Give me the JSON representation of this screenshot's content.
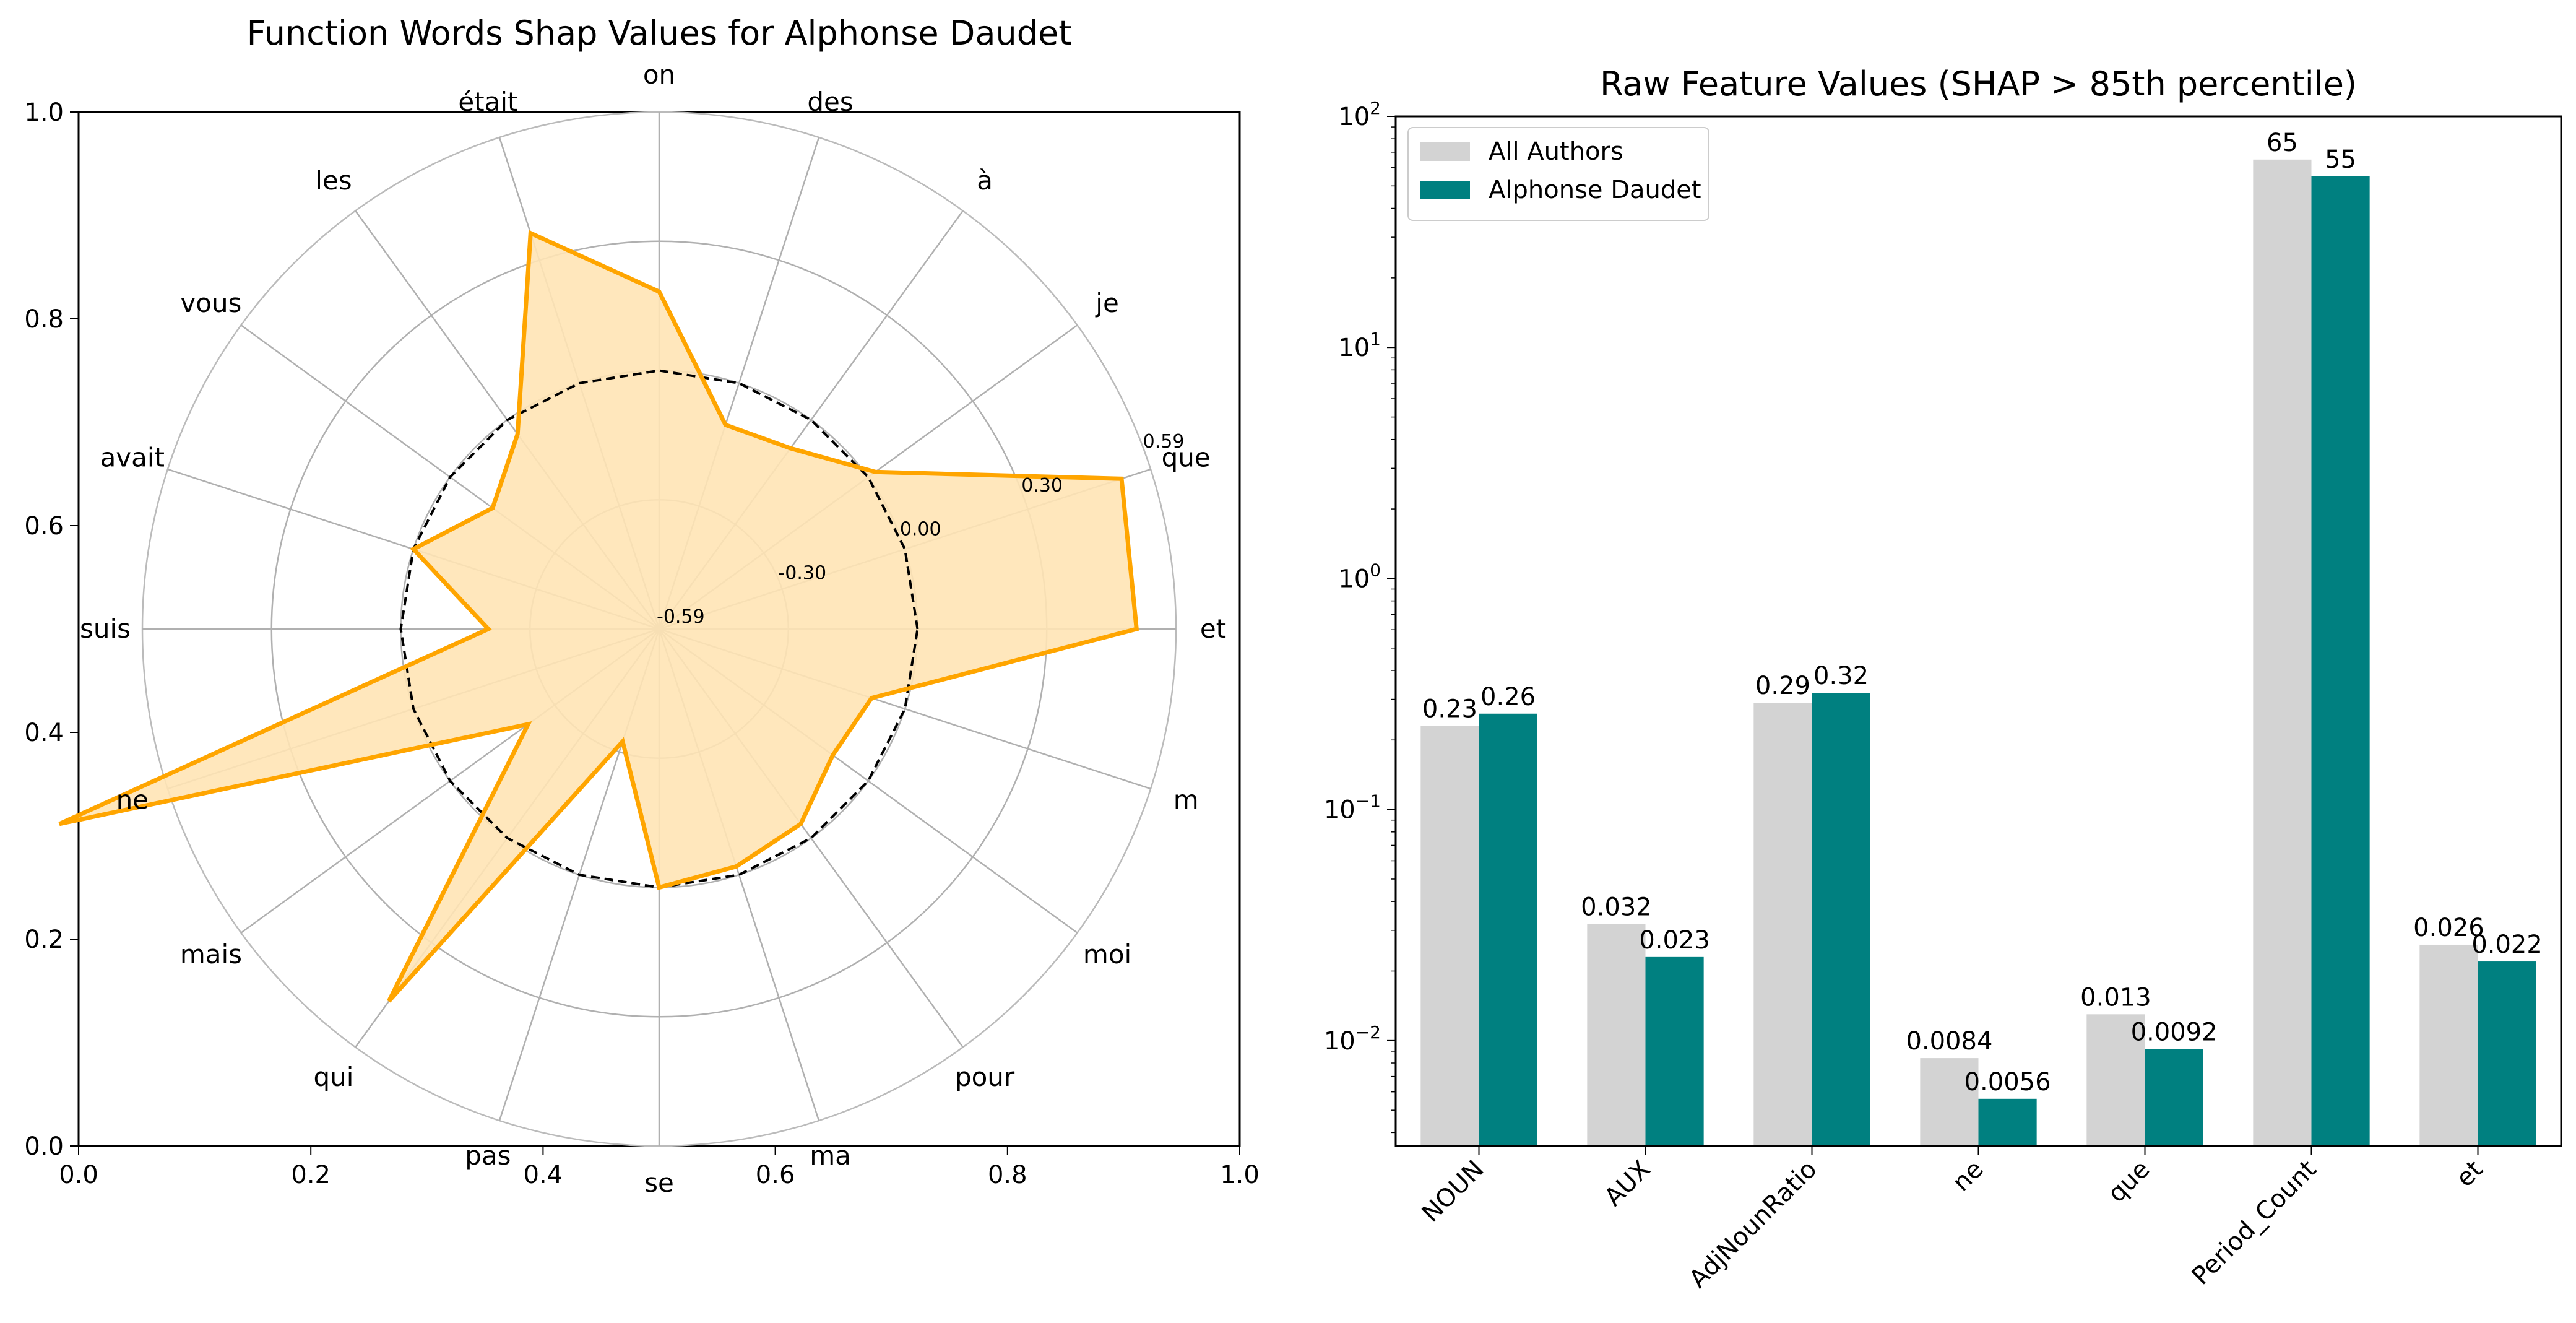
{
  "chart_data": [
    {
      "type": "radar",
      "title": "Function Words Shap Values for Alphonse Daudet",
      "categories": [
        "et",
        "que",
        "je",
        "à",
        "des",
        "on",
        "était",
        "les",
        "vous",
        "avait",
        "suis",
        "ne",
        "mais",
        "qui",
        "pas",
        "se",
        "ma",
        "pour",
        "moi",
        "m"
      ],
      "series": [
        {
          "values": [
            0.5,
            0.52,
            0.02,
            -0.08,
            -0.1,
            0.18,
            0.36,
            -0.04,
            -0.12,
            0.0,
            -0.2,
            0.85,
            -0.22,
            0.46,
            -0.32,
            0.0,
            -0.02,
            -0.04,
            -0.1,
            -0.08
          ],
          "color": "#FFA500",
          "fill": "#FFE4B5"
        },
        {
          "values": [
            0,
            0,
            0,
            0,
            0,
            0,
            0,
            0,
            0,
            0,
            0,
            0,
            0,
            0,
            0,
            0,
            0,
            0,
            0,
            0
          ],
          "color": "#000000",
          "style": "dashed"
        }
      ],
      "radial_range": [
        -0.59,
        0.59
      ],
      "radial_ticks": [
        "-0.59",
        "-0.30",
        "0.00",
        "0.30",
        "0.59"
      ],
      "cartesian_ticks": [
        "0.0",
        "0.2",
        "0.4",
        "0.6",
        "0.8",
        "1.0"
      ],
      "grid": true
    },
    {
      "type": "bar",
      "title": "Raw Feature Values (SHAP > 85th percentile)",
      "categories": [
        "NOUN",
        "AUX",
        "AdjNounRatio",
        "ne",
        "que",
        "Period_Count",
        "et"
      ],
      "series": [
        {
          "name": "All Authors",
          "values": [
            0.23,
            0.032,
            0.29,
            0.0084,
            0.013,
            65,
            0.026
          ],
          "labels": [
            "0.23",
            "0.032",
            "0.29",
            "0.0084",
            "0.013",
            "65",
            "0.026"
          ],
          "color": "#D3D3D3"
        },
        {
          "name": "Alphonse Daudet",
          "values": [
            0.26,
            0.023,
            0.32,
            0.0056,
            0.0092,
            55,
            0.022
          ],
          "labels": [
            "0.26",
            "0.023",
            "0.32",
            "0.0056",
            "0.0092",
            "55",
            "0.022"
          ],
          "color": "#008080"
        }
      ],
      "yscale": "log",
      "ylim": [
        0.0035,
        100
      ],
      "ytick_exponents": [
        "2",
        "1",
        "0",
        "−1",
        "−2"
      ],
      "legend": "upper-left"
    }
  ]
}
